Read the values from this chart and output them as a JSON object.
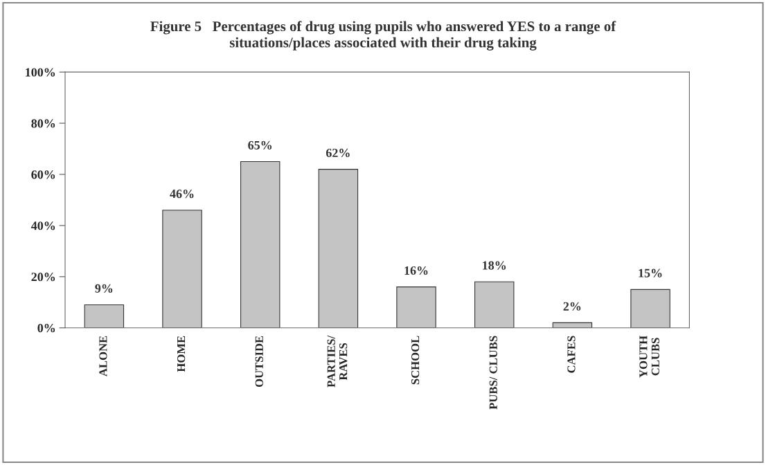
{
  "chart_data": {
    "type": "bar",
    "title": "Figure 5   Percentages of drug using pupils who answered YES to a range of\nsituations/places associated with their drug taking",
    "categories": [
      "ALONE",
      "HOME",
      "OUTSIDE",
      "PARTIES/\nRAVES",
      "SCHOOL",
      "PUBS/ CLUBS",
      "CAFES",
      "YOUTH\nCLUBS"
    ],
    "values": [
      9,
      46,
      65,
      62,
      16,
      18,
      2,
      15
    ],
    "value_labels": [
      "9%",
      "46%",
      "65%",
      "62%",
      "16%",
      "18%",
      "2%",
      "15%"
    ],
    "color": "#c4c4c4",
    "ylim": [
      0,
      100
    ],
    "yticks": [
      {
        "value": 0,
        "label": "0%"
      },
      {
        "value": 20,
        "label": "20%"
      },
      {
        "value": 40,
        "label": "40%"
      },
      {
        "value": 60,
        "label": "60%"
      },
      {
        "value": 80,
        "label": "80%"
      },
      {
        "value": 100,
        "label": "100%"
      }
    ],
    "grid": false,
    "legend": false
  }
}
